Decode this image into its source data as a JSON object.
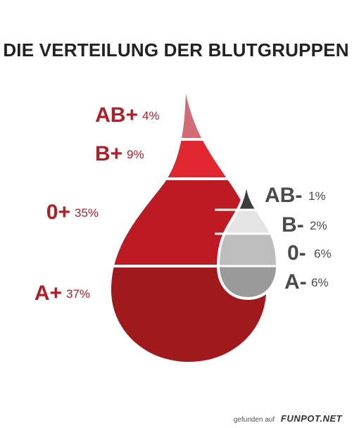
{
  "chart_data": {
    "type": "drop",
    "title": "DIE VERTEILUNG DER BLUTGRUPPEN",
    "groups": [
      {
        "series": "positive",
        "segments": [
          {
            "label": "AB+",
            "percent_text": "4%",
            "value": 4,
            "color": "#d46a74"
          },
          {
            "label": "B+",
            "percent_text": "9%",
            "value": 9,
            "color": "#e0262f"
          },
          {
            "label": "0+",
            "percent_text": "35%",
            "value": 35,
            "color": "#bd1a24"
          },
          {
            "label": "A+",
            "percent_text": "37%",
            "value": 37,
            "color": "#a0191c"
          }
        ]
      },
      {
        "series": "negative",
        "segments": [
          {
            "label": "AB-",
            "percent_text": "1%",
            "value": 1,
            "color": "#3d3d3f"
          },
          {
            "label": "B-",
            "percent_text": "2%",
            "value": 2,
            "color": "#e4e4e4"
          },
          {
            "label": "0-",
            "percent_text": "6%",
            "value": 6,
            "color": "#bdbdbd"
          },
          {
            "label": "A-",
            "percent_text": "6%",
            "value": 6,
            "color": "#9a9a9a"
          }
        ]
      }
    ],
    "label_colors": {
      "positive": "#b01e28",
      "negative": "#4a4a4a"
    }
  },
  "footer": {
    "prefix": "gefunden auf",
    "brand": "FUNPOT.NET"
  }
}
